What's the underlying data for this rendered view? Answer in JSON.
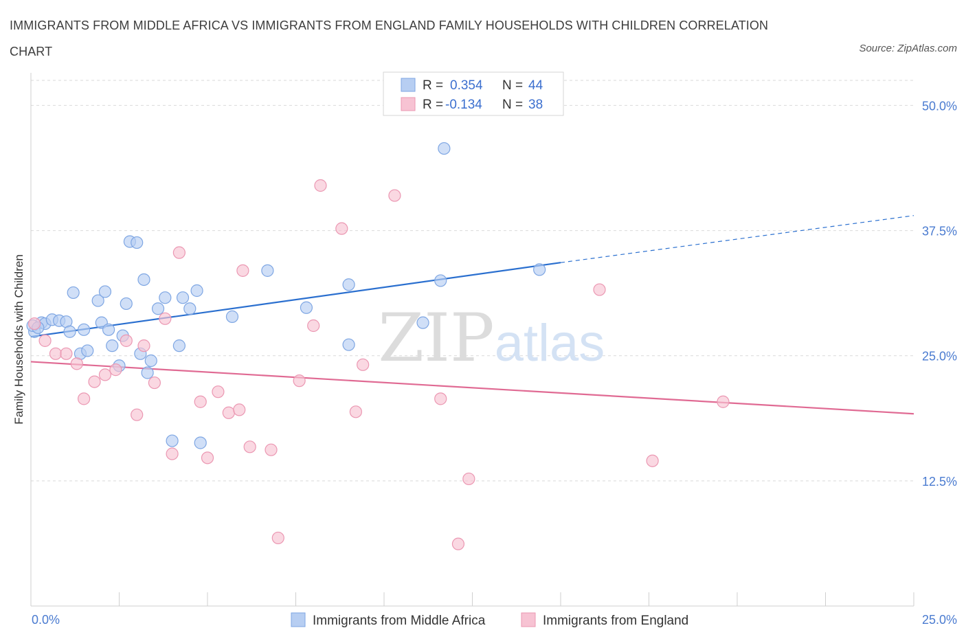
{
  "title": "IMMIGRANTS FROM MIDDLE AFRICA VS IMMIGRANTS FROM ENGLAND FAMILY HOUSEHOLDS WITH CHILDREN CORRELATION CHART",
  "source": "Source: ZipAtlas.com",
  "watermark": {
    "zip": "ZIP",
    "atlas": "atlas"
  },
  "colors": {
    "blue_fill": "#b7cef2",
    "blue_stroke": "#7ea6e3",
    "blue_line": "#2a6fcf",
    "pink_fill": "#f7c3d3",
    "pink_stroke": "#eb97b2",
    "pink_line": "#e06a93",
    "tick_text": "#4a7bd0",
    "grid": "#d9d9d9"
  },
  "stats_legend": [
    {
      "r_label": "R =",
      "r_value": "0.354",
      "n_label": "N =",
      "n_value": "44",
      "color": "blue"
    },
    {
      "r_label": "R =",
      "r_value": "-0.134",
      "n_label": "N =",
      "n_value": "38",
      "color": "pink"
    }
  ],
  "chart_data": {
    "type": "scatter",
    "title": "IMMIGRANTS FROM MIDDLE AFRICA VS IMMIGRANTS FROM ENGLAND FAMILY HOUSEHOLDS WITH CHILDREN CORRELATION CHART",
    "xlabel": "",
    "ylabel": "Family Households with Children",
    "xlim": [
      0,
      25
    ],
    "ylim": [
      0,
      52.5
    ],
    "x_tick_labels": [
      "0.0%",
      "25.0%"
    ],
    "y_ticks": [
      12.5,
      25.0,
      37.5,
      50.0
    ],
    "y_tick_labels": [
      "12.5%",
      "25.0%",
      "37.5%",
      "50.0%"
    ],
    "grid": true,
    "legend_position": "bottom",
    "series": [
      {
        "name": "Immigrants from Middle Africa",
        "color": "blue",
        "points": [
          [
            0.1,
            27.4
          ],
          [
            0.3,
            28.3
          ],
          [
            0.4,
            28.2
          ],
          [
            0.6,
            28.6
          ],
          [
            0.8,
            28.5
          ],
          [
            1.0,
            28.4
          ],
          [
            1.1,
            27.4
          ],
          [
            1.2,
            31.3
          ],
          [
            1.4,
            25.2
          ],
          [
            1.5,
            27.6
          ],
          [
            1.6,
            25.5
          ],
          [
            1.9,
            30.5
          ],
          [
            2.0,
            28.3
          ],
          [
            2.2,
            27.6
          ],
          [
            2.1,
            31.4
          ],
          [
            2.3,
            26.0
          ],
          [
            2.5,
            24.0
          ],
          [
            2.6,
            27.0
          ],
          [
            2.7,
            30.2
          ],
          [
            2.8,
            36.4
          ],
          [
            3.0,
            36.3
          ],
          [
            3.1,
            25.2
          ],
          [
            3.2,
            32.6
          ],
          [
            3.3,
            23.3
          ],
          [
            3.4,
            24.5
          ],
          [
            3.6,
            29.7
          ],
          [
            3.8,
            30.8
          ],
          [
            4.0,
            16.5
          ],
          [
            4.2,
            26.0
          ],
          [
            4.3,
            30.8
          ],
          [
            4.5,
            29.7
          ],
          [
            4.7,
            31.5
          ],
          [
            4.8,
            16.3
          ],
          [
            5.7,
            28.9
          ],
          [
            6.7,
            33.5
          ],
          [
            7.8,
            29.8
          ],
          [
            9.0,
            26.1
          ],
          [
            9.0,
            32.1
          ],
          [
            11.1,
            28.3
          ],
          [
            11.6,
            32.5
          ],
          [
            11.7,
            45.7
          ],
          [
            14.4,
            33.6
          ],
          [
            0.05,
            28.0
          ],
          [
            0.2,
            27.8
          ]
        ],
        "trend": {
          "x": [
            0,
            15
          ],
          "y": [
            26.9,
            34.3
          ],
          "dashed_to": [
            25,
            39.0
          ]
        }
      },
      {
        "name": "Immigrants from England",
        "color": "pink",
        "points": [
          [
            0.1,
            28.2
          ],
          [
            0.4,
            26.5
          ],
          [
            0.7,
            25.2
          ],
          [
            1.0,
            25.2
          ],
          [
            1.3,
            24.2
          ],
          [
            1.5,
            20.7
          ],
          [
            1.8,
            22.4
          ],
          [
            2.1,
            23.1
          ],
          [
            2.4,
            23.6
          ],
          [
            2.7,
            26.5
          ],
          [
            3.0,
            19.1
          ],
          [
            3.2,
            26.0
          ],
          [
            3.5,
            22.3
          ],
          [
            3.8,
            28.7
          ],
          [
            4.0,
            15.2
          ],
          [
            4.2,
            35.3
          ],
          [
            4.8,
            20.4
          ],
          [
            5.0,
            14.8
          ],
          [
            5.3,
            21.4
          ],
          [
            5.6,
            19.3
          ],
          [
            5.9,
            19.6
          ],
          [
            6.0,
            33.5
          ],
          [
            6.2,
            15.9
          ],
          [
            6.8,
            15.6
          ],
          [
            7.0,
            6.8
          ],
          [
            7.6,
            22.5
          ],
          [
            8.0,
            28.0
          ],
          [
            8.2,
            42.0
          ],
          [
            8.8,
            37.7
          ],
          [
            9.2,
            19.4
          ],
          [
            9.4,
            24.1
          ],
          [
            10.3,
            41.0
          ],
          [
            11.6,
            20.7
          ],
          [
            12.1,
            6.2
          ],
          [
            12.4,
            12.7
          ],
          [
            16.1,
            31.6
          ],
          [
            17.6,
            14.5
          ],
          [
            19.6,
            20.4
          ]
        ],
        "trend": {
          "x": [
            0,
            25
          ],
          "y": [
            24.4,
            19.2
          ]
        }
      }
    ]
  }
}
